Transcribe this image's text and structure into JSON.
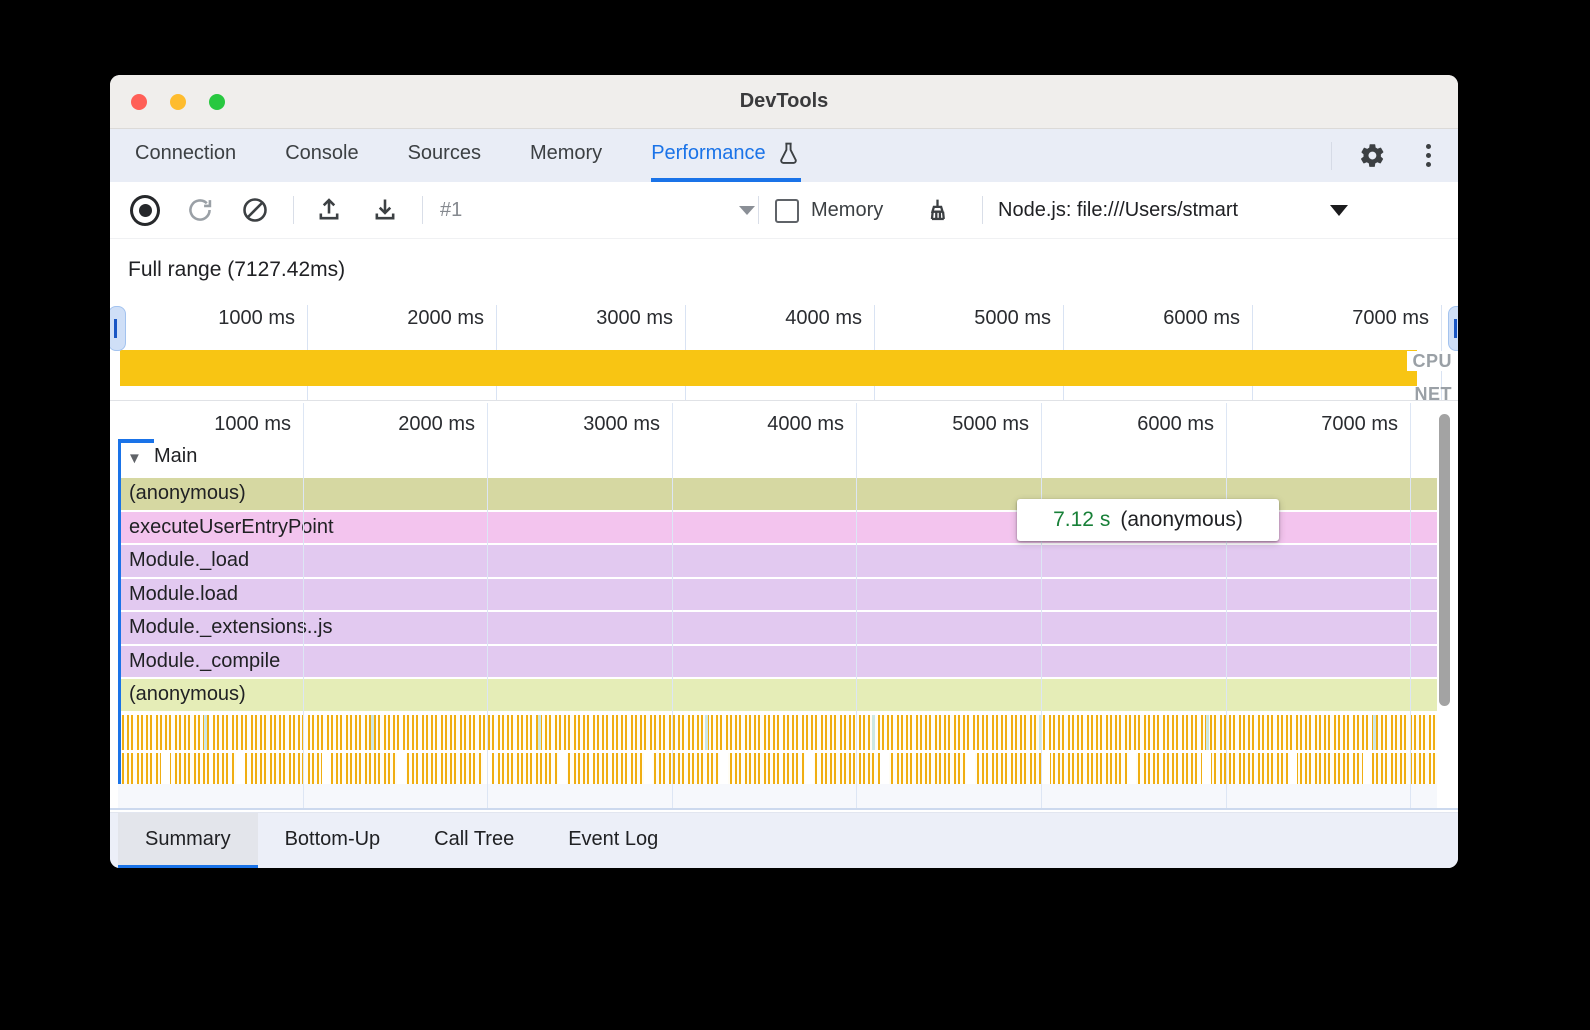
{
  "window": {
    "title": "DevTools"
  },
  "tab_bar": {
    "tabs": [
      {
        "label": "Connection",
        "active": false
      },
      {
        "label": "Console",
        "active": false
      },
      {
        "label": "Sources",
        "active": false
      },
      {
        "label": "Memory",
        "active": false
      },
      {
        "label": "Performance",
        "active": true,
        "icon": "flask-icon"
      }
    ]
  },
  "toolbar": {
    "history_selected": "#1",
    "memory_label": "Memory",
    "memory_checked": false,
    "target_selector": "Node.js: file:///Users/stmart"
  },
  "overview": {
    "full_range_label": "Full range (7127.42ms)",
    "ticks": [
      "1000 ms",
      "2000 ms",
      "3000 ms",
      "4000 ms",
      "5000 ms",
      "6000 ms",
      "7000 ms"
    ],
    "cpu_label": "CPU",
    "net_label": "NET",
    "cpu_fill_color": "#f8c513"
  },
  "flame_chart": {
    "ticks": [
      "1000 ms",
      "2000 ms",
      "3000 ms",
      "4000 ms",
      "5000 ms",
      "6000 ms",
      "7000 ms"
    ],
    "track_label": "Main",
    "rows": [
      {
        "label": "(anonymous)",
        "color": "#d6d8a2"
      },
      {
        "label": "executeUserEntryPoint",
        "color": "#f3c4ee"
      },
      {
        "label": "Module._load",
        "color": "#e2c9f0"
      },
      {
        "label": "Module.load",
        "color": "#e2c9f0"
      },
      {
        "label": "Module._extensions..js",
        "color": "#e2c9f0"
      },
      {
        "label": "Module._compile",
        "color": "#e2c9f0"
      },
      {
        "label": "(anonymous)",
        "color": "#e5edb7"
      }
    ],
    "tooltip": {
      "duration": "7.12 s",
      "name": "(anonymous)"
    },
    "stripe_color": "#f0ae12"
  },
  "bottom_bar": {
    "tabs": [
      {
        "label": "Summary",
        "active": true
      },
      {
        "label": "Bottom-Up",
        "active": false
      },
      {
        "label": "Call Tree",
        "active": false
      },
      {
        "label": "Event Log",
        "active": false
      }
    ]
  },
  "colors": {
    "accent": "#1a73e8",
    "tooltip_duration": "#188038"
  }
}
